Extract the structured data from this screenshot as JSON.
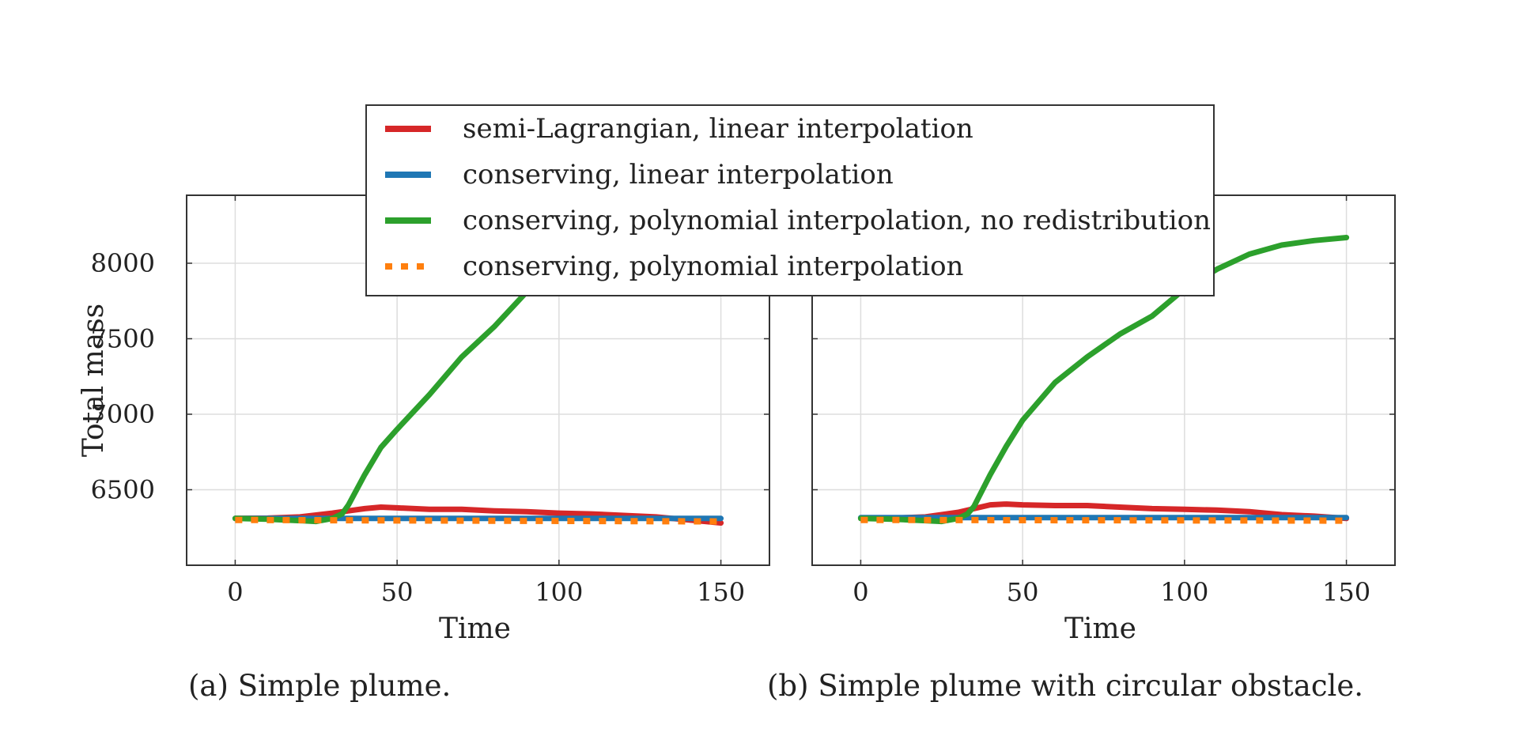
{
  "legend": {
    "entries": [
      {
        "label": "semi-Lagrangian, linear interpolation",
        "color": "#d62728",
        "style": "solid"
      },
      {
        "label": "conserving, linear interpolation",
        "color": "#1f77b4",
        "style": "solid"
      },
      {
        "label": "conserving, polynomial interpolation, no redistribution",
        "color": "#2ca02c",
        "style": "solid"
      },
      {
        "label": "conserving, polynomial interpolation",
        "color": "#ff7f0e",
        "style": "dotted"
      }
    ]
  },
  "captions": {
    "a": "(a) Simple plume.",
    "b": "(b) Simple plume with circular obstacle."
  },
  "chart_data": [
    {
      "type": "line",
      "title": "(a) Simple plume.",
      "xlabel": "Time",
      "ylabel": "Total mass",
      "xlim": [
        -15,
        165
      ],
      "ylim": [
        6000,
        8450
      ],
      "xticks": [
        0,
        50,
        100,
        150
      ],
      "yticks": [
        6500,
        7000,
        7500,
        8000
      ],
      "grid": true,
      "series": [
        {
          "name": "semi-Lagrangian, linear interpolation",
          "color": "#d62728",
          "style": "solid",
          "x": [
            0,
            10,
            20,
            30,
            35,
            40,
            45,
            50,
            60,
            70,
            80,
            90,
            100,
            110,
            120,
            130,
            140,
            150
          ],
          "y": [
            6310,
            6312,
            6320,
            6345,
            6360,
            6375,
            6385,
            6380,
            6370,
            6370,
            6360,
            6355,
            6345,
            6340,
            6330,
            6320,
            6300,
            6280
          ]
        },
        {
          "name": "conserving, linear interpolation",
          "color": "#1f77b4",
          "style": "solid",
          "x": [
            0,
            150
          ],
          "y": [
            6310,
            6310
          ]
        },
        {
          "name": "conserving, polynomial interpolation, no redistribution",
          "color": "#2ca02c",
          "style": "solid",
          "x": [
            0,
            10,
            20,
            25,
            30,
            33,
            35,
            40,
            45,
            50,
            60,
            70,
            80,
            90,
            95,
            100,
            110,
            120,
            130,
            140,
            150
          ],
          "y": [
            6310,
            6305,
            6295,
            6290,
            6310,
            6340,
            6400,
            6600,
            6780,
            6900,
            7130,
            7380,
            7580,
            7810,
            7920,
            8000,
            8040,
            8060,
            8070,
            8080,
            8090
          ]
        },
        {
          "name": "conserving, polynomial interpolation",
          "color": "#ff7f0e",
          "style": "dotted",
          "x": [
            0,
            150
          ],
          "y": [
            6300,
            6290
          ]
        }
      ]
    },
    {
      "type": "line",
      "title": "(b) Simple plume with circular obstacle.",
      "xlabel": "Time",
      "ylabel": "",
      "xlim": [
        -15,
        165
      ],
      "ylim": [
        6000,
        8450
      ],
      "xticks": [
        0,
        50,
        100,
        150
      ],
      "yticks": [
        6500,
        7000,
        7500,
        8000
      ],
      "show_ytick_labels": false,
      "grid": true,
      "series": [
        {
          "name": "semi-Lagrangian, linear interpolation",
          "color": "#d62728",
          "style": "solid",
          "x": [
            0,
            10,
            20,
            30,
            35,
            40,
            45,
            50,
            60,
            70,
            80,
            90,
            100,
            110,
            120,
            130,
            140,
            150
          ],
          "y": [
            6310,
            6312,
            6320,
            6350,
            6375,
            6400,
            6405,
            6400,
            6395,
            6395,
            6385,
            6375,
            6370,
            6365,
            6355,
            6335,
            6325,
            6310
          ]
        },
        {
          "name": "conserving, linear interpolation",
          "color": "#1f77b4",
          "style": "solid",
          "x": [
            0,
            150
          ],
          "y": [
            6315,
            6315
          ]
        },
        {
          "name": "conserving, polynomial interpolation, no redistribution",
          "color": "#2ca02c",
          "style": "solid",
          "x": [
            0,
            10,
            20,
            25,
            30,
            33,
            35,
            40,
            45,
            50,
            60,
            70,
            80,
            90,
            100,
            110,
            120,
            130,
            140,
            150
          ],
          "y": [
            6310,
            6305,
            6295,
            6290,
            6310,
            6340,
            6390,
            6600,
            6790,
            6960,
            7210,
            7380,
            7530,
            7650,
            7830,
            7960,
            8060,
            8120,
            8150,
            8170
          ]
        },
        {
          "name": "conserving, polynomial interpolation",
          "color": "#ff7f0e",
          "style": "dotted",
          "x": [
            0,
            150
          ],
          "y": [
            6300,
            6295
          ]
        }
      ]
    }
  ]
}
